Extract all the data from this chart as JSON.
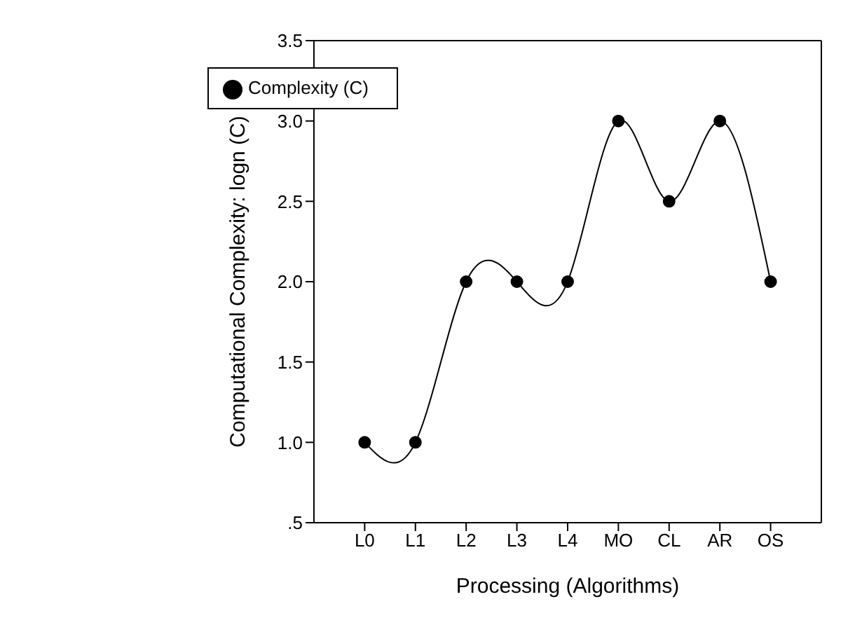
{
  "chart_data": {
    "type": "line",
    "xlabel": "Processing (Algorithms)",
    "ylabel": "Computational Complexity: logn (C)",
    "categories": [
      "L0",
      "L1",
      "L2",
      "L3",
      "L4",
      "MO",
      "CL",
      "AR",
      "OS"
    ],
    "series": [
      {
        "name": "Complexity (C)",
        "color": "#000000",
        "values": [
          1,
          1,
          2,
          2,
          2,
          3,
          2.5,
          3,
          2
        ]
      }
    ],
    "ylim": [
      0.5,
      3.5
    ],
    "yticks": [
      {
        "value": 0.5,
        "label": ".5"
      },
      {
        "value": 1,
        "label": "1.0"
      },
      {
        "value": 1.5,
        "label": "1.5"
      },
      {
        "value": 2,
        "label": "2.0"
      },
      {
        "value": 2.5,
        "label": "2.5"
      },
      {
        "value": 3,
        "label": "3.0"
      },
      {
        "value": 3.5,
        "label": "3.5"
      }
    ],
    "grid": false,
    "legend": "top left",
    "marker": "circle",
    "line_style": "solid"
  }
}
